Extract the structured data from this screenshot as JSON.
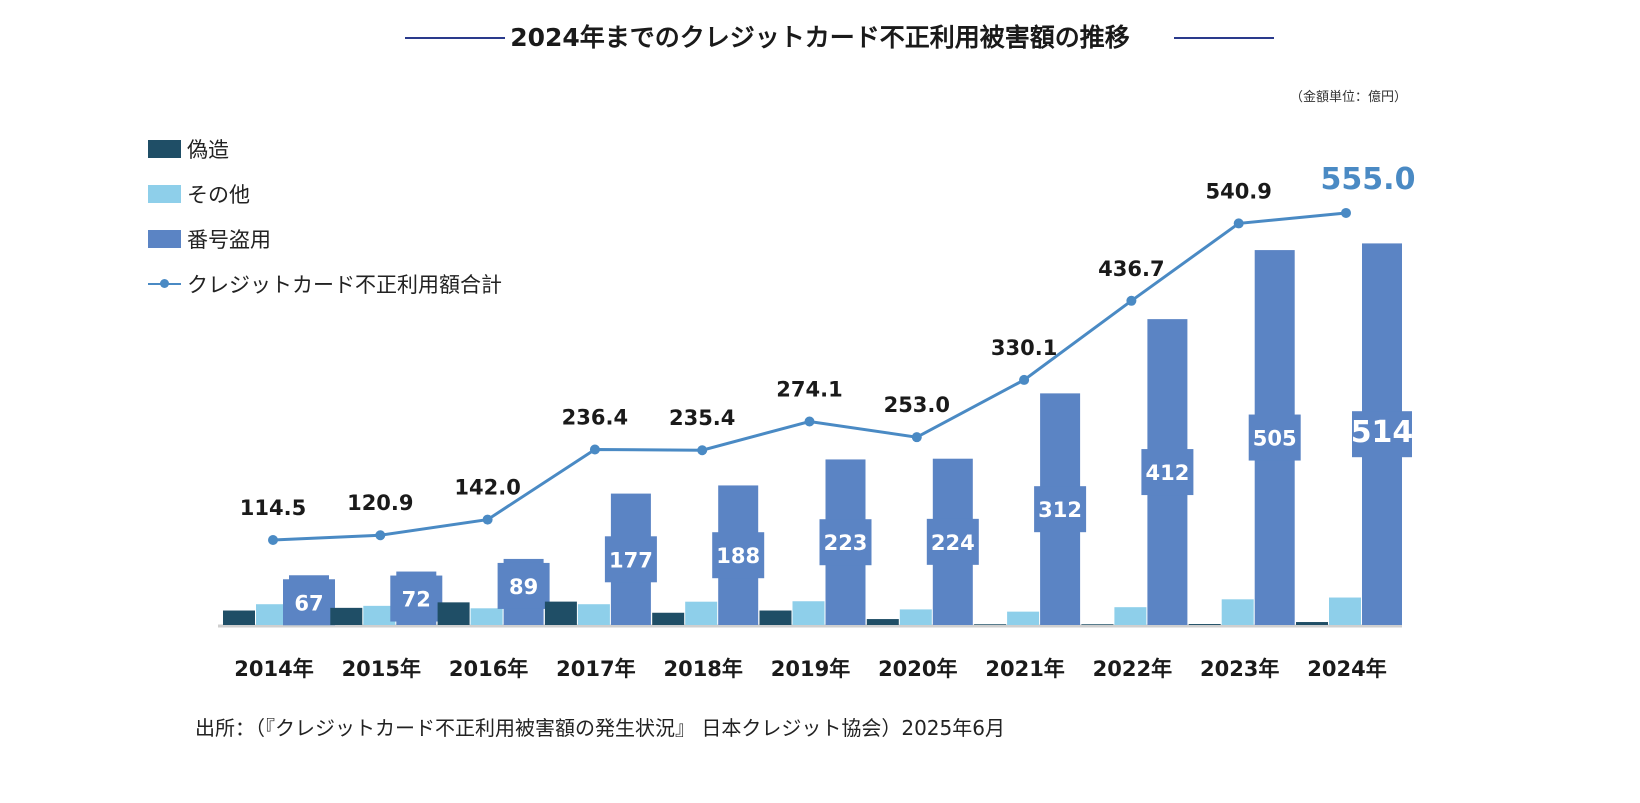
{
  "title": "2024年までのクレジットカード不正利用被害額の推移",
  "unit_note": "（金額単位：億円）",
  "legend": {
    "items": [
      {
        "label": "偽造",
        "color": "#1f4e66"
      },
      {
        "label": "その他",
        "color": "#8ecfea"
      },
      {
        "label": "番号盗用",
        "color": "#5b84c4"
      },
      {
        "label": "クレジットカード不正利用額合計",
        "color": "#4a8ac4"
      }
    ]
  },
  "source": "出所：（『クレジットカード不正利用被害額の発生状況』 日本クレジット協会）2025年6月",
  "chart_data": {
    "type": "bar",
    "categories": [
      "2014年",
      "2015年",
      "2016年",
      "2017年",
      "2018年",
      "2019年",
      "2020年",
      "2021年",
      "2022年",
      "2023年",
      "2024年"
    ],
    "ylim": [
      0,
      580
    ],
    "grid": false,
    "legend_position": "top-left",
    "series": [
      {
        "name": "偽造",
        "type": "bar",
        "color": "#1f4e66",
        "values": [
          19.5,
          23.1,
          30.5,
          31.5,
          16.5,
          19.5,
          8.0,
          1.0,
          1.0,
          1.3,
          4.0
        ]
      },
      {
        "name": "その他",
        "type": "bar",
        "color": "#8ecfea",
        "values": [
          28,
          25.8,
          22.5,
          28,
          31.4,
          32,
          21,
          18,
          24,
          34.6,
          37
        ]
      },
      {
        "name": "番号盗用",
        "type": "bar",
        "color": "#5b84c4",
        "values": [
          67,
          72,
          89,
          177,
          188,
          223,
          224,
          312,
          412,
          505,
          514
        ],
        "labels": [
          "67",
          "72",
          "89",
          "177",
          "188",
          "223",
          "224",
          "312",
          "412",
          "505",
          "514"
        ]
      },
      {
        "name": "クレジットカード不正利用額合計",
        "type": "line",
        "color": "#4a8ac4",
        "values": [
          114.5,
          120.9,
          142.0,
          236.4,
          235.4,
          274.1,
          253.0,
          330.1,
          436.7,
          540.9,
          555.0
        ],
        "labels": [
          "114.5",
          "120.9",
          "142.0",
          "236.4",
          "235.4",
          "274.1",
          "253.0",
          "330.1",
          "436.7",
          "540.9",
          "555.0"
        ]
      }
    ]
  }
}
